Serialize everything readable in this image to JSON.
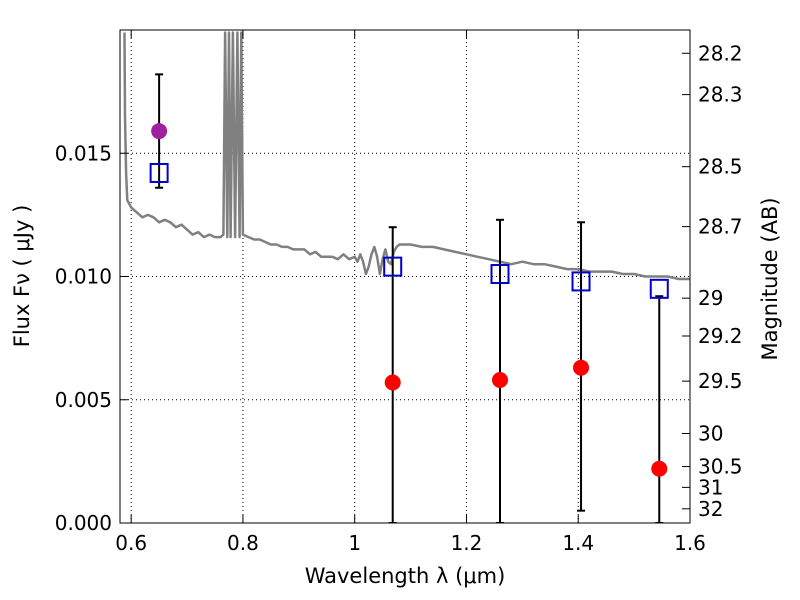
{
  "chart_data": {
    "type": "scatter",
    "title": "",
    "xlabel": "Wavelength  λ (μm)",
    "ylabel": "Flux  Fν  ( μJy )",
    "ylabel_right": "Magnitude (AB)",
    "xlim": [
      0.58,
      1.6
    ],
    "ylim": [
      0.0,
      0.02
    ],
    "grid": true,
    "x_ticks": [
      {
        "value": 0.6,
        "label": "0.6"
      },
      {
        "value": 0.8,
        "label": "0.8"
      },
      {
        "value": 1.0,
        "label": "1"
      },
      {
        "value": 1.2,
        "label": "1.2"
      },
      {
        "value": 1.4,
        "label": "1.4"
      },
      {
        "value": 1.6,
        "label": "1.6"
      }
    ],
    "y_ticks": [
      {
        "value": 0.0,
        "label": "0.000"
      },
      {
        "value": 0.005,
        "label": "0.005"
      },
      {
        "value": 0.01,
        "label": "0.010"
      },
      {
        "value": 0.015,
        "label": "0.015"
      }
    ],
    "y_right_ticks": [
      {
        "mag": 28.2,
        "label": "28.2"
      },
      {
        "mag": 28.3,
        "label": "28.3"
      },
      {
        "mag": 28.5,
        "label": "28.5"
      },
      {
        "mag": 28.7,
        "label": "28.7"
      },
      {
        "mag": 29.0,
        "label": "29"
      },
      {
        "mag": 29.2,
        "label": "29.2"
      },
      {
        "mag": 29.5,
        "label": "29.5"
      },
      {
        "mag": 30.0,
        "label": "30"
      },
      {
        "mag": 30.5,
        "label": "30.5"
      },
      {
        "mag": 31.0,
        "label": "31"
      },
      {
        "mag": 32.0,
        "label": "32"
      }
    ],
    "series": [
      {
        "kind": "line",
        "color": "#808080",
        "points": [
          [
            0.588,
            0.0199
          ],
          [
            0.589,
            0.0165
          ],
          [
            0.591,
            0.0142
          ],
          [
            0.593,
            0.0131
          ],
          [
            0.6,
            0.0128
          ],
          [
            0.61,
            0.0126
          ],
          [
            0.62,
            0.0124
          ],
          [
            0.63,
            0.0125
          ],
          [
            0.64,
            0.0124
          ],
          [
            0.65,
            0.0122
          ],
          [
            0.66,
            0.0123
          ],
          [
            0.67,
            0.0122
          ],
          [
            0.68,
            0.012
          ],
          [
            0.69,
            0.0121
          ],
          [
            0.7,
            0.0119
          ],
          [
            0.71,
            0.0117
          ],
          [
            0.72,
            0.0118
          ],
          [
            0.73,
            0.0116
          ],
          [
            0.74,
            0.0117
          ],
          [
            0.75,
            0.0116
          ],
          [
            0.76,
            0.0116
          ],
          [
            0.765,
            0.0117
          ],
          [
            0.768,
            0.0199
          ],
          [
            0.772,
            0.0116
          ],
          [
            0.775,
            0.0199
          ],
          [
            0.778,
            0.0116
          ],
          [
            0.782,
            0.0199
          ],
          [
            0.786,
            0.0116
          ],
          [
            0.79,
            0.0199
          ],
          [
            0.794,
            0.0116
          ],
          [
            0.797,
            0.0199
          ],
          [
            0.8,
            0.0117
          ],
          [
            0.81,
            0.0116
          ],
          [
            0.82,
            0.0115
          ],
          [
            0.83,
            0.0115
          ],
          [
            0.84,
            0.0114
          ],
          [
            0.85,
            0.0113
          ],
          [
            0.86,
            0.0113
          ],
          [
            0.87,
            0.0112
          ],
          [
            0.88,
            0.0112
          ],
          [
            0.89,
            0.0111
          ],
          [
            0.9,
            0.0111
          ],
          [
            0.91,
            0.0111
          ],
          [
            0.92,
            0.0109
          ],
          [
            0.93,
            0.011
          ],
          [
            0.94,
            0.0108
          ],
          [
            0.95,
            0.0108
          ],
          [
            0.96,
            0.0108
          ],
          [
            0.97,
            0.0107
          ],
          [
            0.98,
            0.0109
          ],
          [
            0.99,
            0.0107
          ],
          [
            1.0,
            0.0108
          ],
          [
            1.005,
            0.0106
          ],
          [
            1.01,
            0.0109
          ],
          [
            1.015,
            0.0106
          ],
          [
            1.02,
            0.0101
          ],
          [
            1.025,
            0.0104
          ],
          [
            1.03,
            0.0109
          ],
          [
            1.035,
            0.0112
          ],
          [
            1.04,
            0.0108
          ],
          [
            1.045,
            0.0101
          ],
          [
            1.05,
            0.0107
          ],
          [
            1.055,
            0.0111
          ],
          [
            1.06,
            0.0106
          ],
          [
            1.065,
            0.0105
          ],
          [
            1.07,
            0.011
          ],
          [
            1.075,
            0.0112
          ],
          [
            1.08,
            0.0113
          ],
          [
            1.1,
            0.0113
          ],
          [
            1.12,
            0.0112
          ],
          [
            1.14,
            0.0112
          ],
          [
            1.16,
            0.0111
          ],
          [
            1.18,
            0.011
          ],
          [
            1.2,
            0.0109
          ],
          [
            1.22,
            0.0108
          ],
          [
            1.24,
            0.0107
          ],
          [
            1.26,
            0.0106
          ],
          [
            1.28,
            0.0105
          ],
          [
            1.3,
            0.0106
          ],
          [
            1.32,
            0.0105
          ],
          [
            1.34,
            0.0105
          ],
          [
            1.36,
            0.0104
          ],
          [
            1.38,
            0.0103
          ],
          [
            1.4,
            0.0103
          ],
          [
            1.42,
            0.0102
          ],
          [
            1.44,
            0.0102
          ],
          [
            1.46,
            0.0102
          ],
          [
            1.48,
            0.0101
          ],
          [
            1.5,
            0.0101
          ],
          [
            1.52,
            0.01
          ],
          [
            1.54,
            0.01
          ],
          [
            1.56,
            0.01
          ],
          [
            1.58,
            0.0099
          ],
          [
            1.6,
            0.0099
          ]
        ]
      },
      {
        "kind": "errorbar",
        "color": "#000000",
        "bars": [
          {
            "x": 0.65,
            "low": 0.0136,
            "high": 0.0182
          },
          {
            "x": 1.068,
            "low": 0.0,
            "high": 0.012
          },
          {
            "x": 1.26,
            "low": 0.0,
            "high": 0.0123
          },
          {
            "x": 1.405,
            "low": 0.0005,
            "high": 0.0122
          },
          {
            "x": 1.545,
            "low": 0.0,
            "high": 0.0092
          }
        ]
      },
      {
        "kind": "open-square",
        "color": "#0000cc",
        "points": [
          [
            0.65,
            0.0142
          ],
          [
            1.068,
            0.0104
          ],
          [
            1.26,
            0.0101
          ],
          [
            1.405,
            0.0098
          ],
          [
            1.545,
            0.0095
          ]
        ]
      },
      {
        "kind": "filled-circle",
        "color": "#ff0000",
        "points": [
          [
            1.068,
            0.0057
          ],
          [
            1.26,
            0.0058
          ],
          [
            1.405,
            0.0063
          ],
          [
            1.545,
            0.0022
          ]
        ]
      },
      {
        "kind": "filled-circle",
        "color": "#a020a0",
        "points": [
          [
            0.65,
            0.0159
          ]
        ]
      }
    ]
  }
}
